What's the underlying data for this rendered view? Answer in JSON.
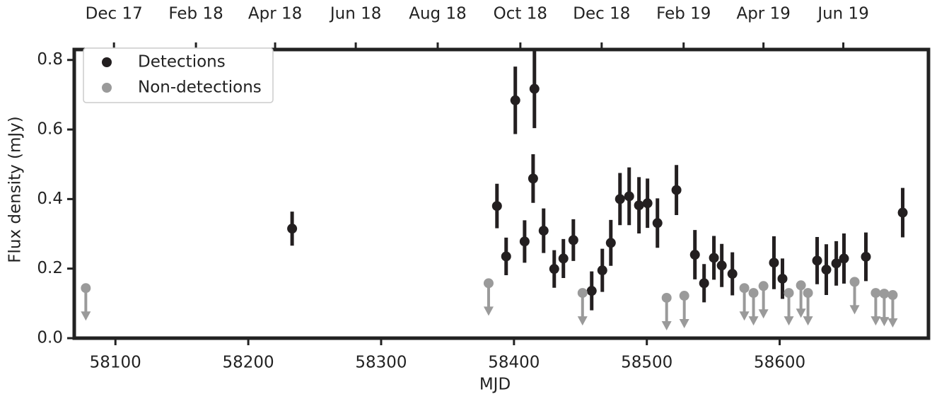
{
  "chart_data": {
    "type": "scatter",
    "xlabel": "MJD",
    "ylabel": "Flux density (mJy)",
    "xlim": [
      58069,
      58712
    ],
    "ylim": [
      0,
      0.83
    ],
    "xticks": [
      58100,
      58200,
      58300,
      58400,
      58500,
      58600
    ],
    "yticks": [
      {
        "value": 0,
        "label": "0.0"
      },
      0.2,
      0.4,
      0.6,
      0.8
    ],
    "x2ticks": [
      {
        "value": 58098.9,
        "label": "Dec 17"
      },
      {
        "value": 58160.6,
        "label": "Feb 18"
      },
      {
        "value": 58220.2,
        "label": "Apr 18"
      },
      {
        "value": 58280.9,
        "label": "Jun 18"
      },
      {
        "value": 58342.6,
        "label": "Aug 18"
      },
      {
        "value": 58404.8,
        "label": "Oct 18"
      },
      {
        "value": 58466,
        "label": "Dec 18"
      },
      {
        "value": 58527.7,
        "label": "Feb 19"
      },
      {
        "value": 58587.8,
        "label": "Apr 19"
      },
      {
        "value": 58647.9,
        "label": "Jun 19"
      }
    ],
    "legend": "upper left",
    "series": [
      {
        "name": "Detections",
        "color": "#231f20",
        "x": [
          58233,
          58387.2,
          58394.1,
          58401,
          58408,
          58414.4,
          58415.4,
          58422.3,
          58430.3,
          58437.2,
          58444.7,
          58458.5,
          58466.5,
          58472.9,
          58479.8,
          58486.7,
          58494.1,
          58500.5,
          58508,
          58522.3,
          58536.2,
          58543.1,
          58550.5,
          58556.4,
          58564.4,
          58595.7,
          58602.1,
          58628.2,
          58635.1,
          58642.6,
          58648.4,
          58664.9,
          58692.6
        ],
        "values": [
          0.315,
          0.38,
          0.235,
          0.684,
          0.278,
          0.459,
          0.717,
          0.309,
          0.199,
          0.229,
          0.282,
          0.136,
          0.195,
          0.274,
          0.4,
          0.408,
          0.382,
          0.388,
          0.331,
          0.426,
          0.24,
          0.158,
          0.231,
          0.209,
          0.185,
          0.217,
          0.171,
          0.223,
          0.197,
          0.215,
          0.229,
          0.234,
          0.361
        ],
        "errors": [
          0.049,
          0.064,
          0.054,
          0.097,
          0.061,
          0.07,
          0.113,
          0.064,
          0.054,
          0.056,
          0.06,
          0.056,
          0.062,
          0.066,
          0.075,
          0.083,
          0.081,
          0.071,
          0.071,
          0.072,
          0.071,
          0.055,
          0.063,
          0.062,
          0.062,
          0.076,
          0.058,
          0.068,
          0.073,
          0.064,
          0.072,
          0.07,
          0.071
        ]
      },
      {
        "name": "Non-detections",
        "color": "#9a9a9a",
        "upper_limits": true,
        "x": [
          58077.7,
          58380.9,
          58451.6,
          58514.9,
          58528.2,
          58573.4,
          58580.3,
          58587.8,
          58606.9,
          58616,
          58621.3,
          58656.4,
          58672.3,
          58678.7,
          58685.1
        ],
        "values": [
          0.144,
          0.158,
          0.13,
          0.116,
          0.122,
          0.144,
          0.13,
          0.15,
          0.13,
          0.152,
          0.13,
          0.162,
          0.13,
          0.128,
          0.124
        ]
      }
    ]
  }
}
